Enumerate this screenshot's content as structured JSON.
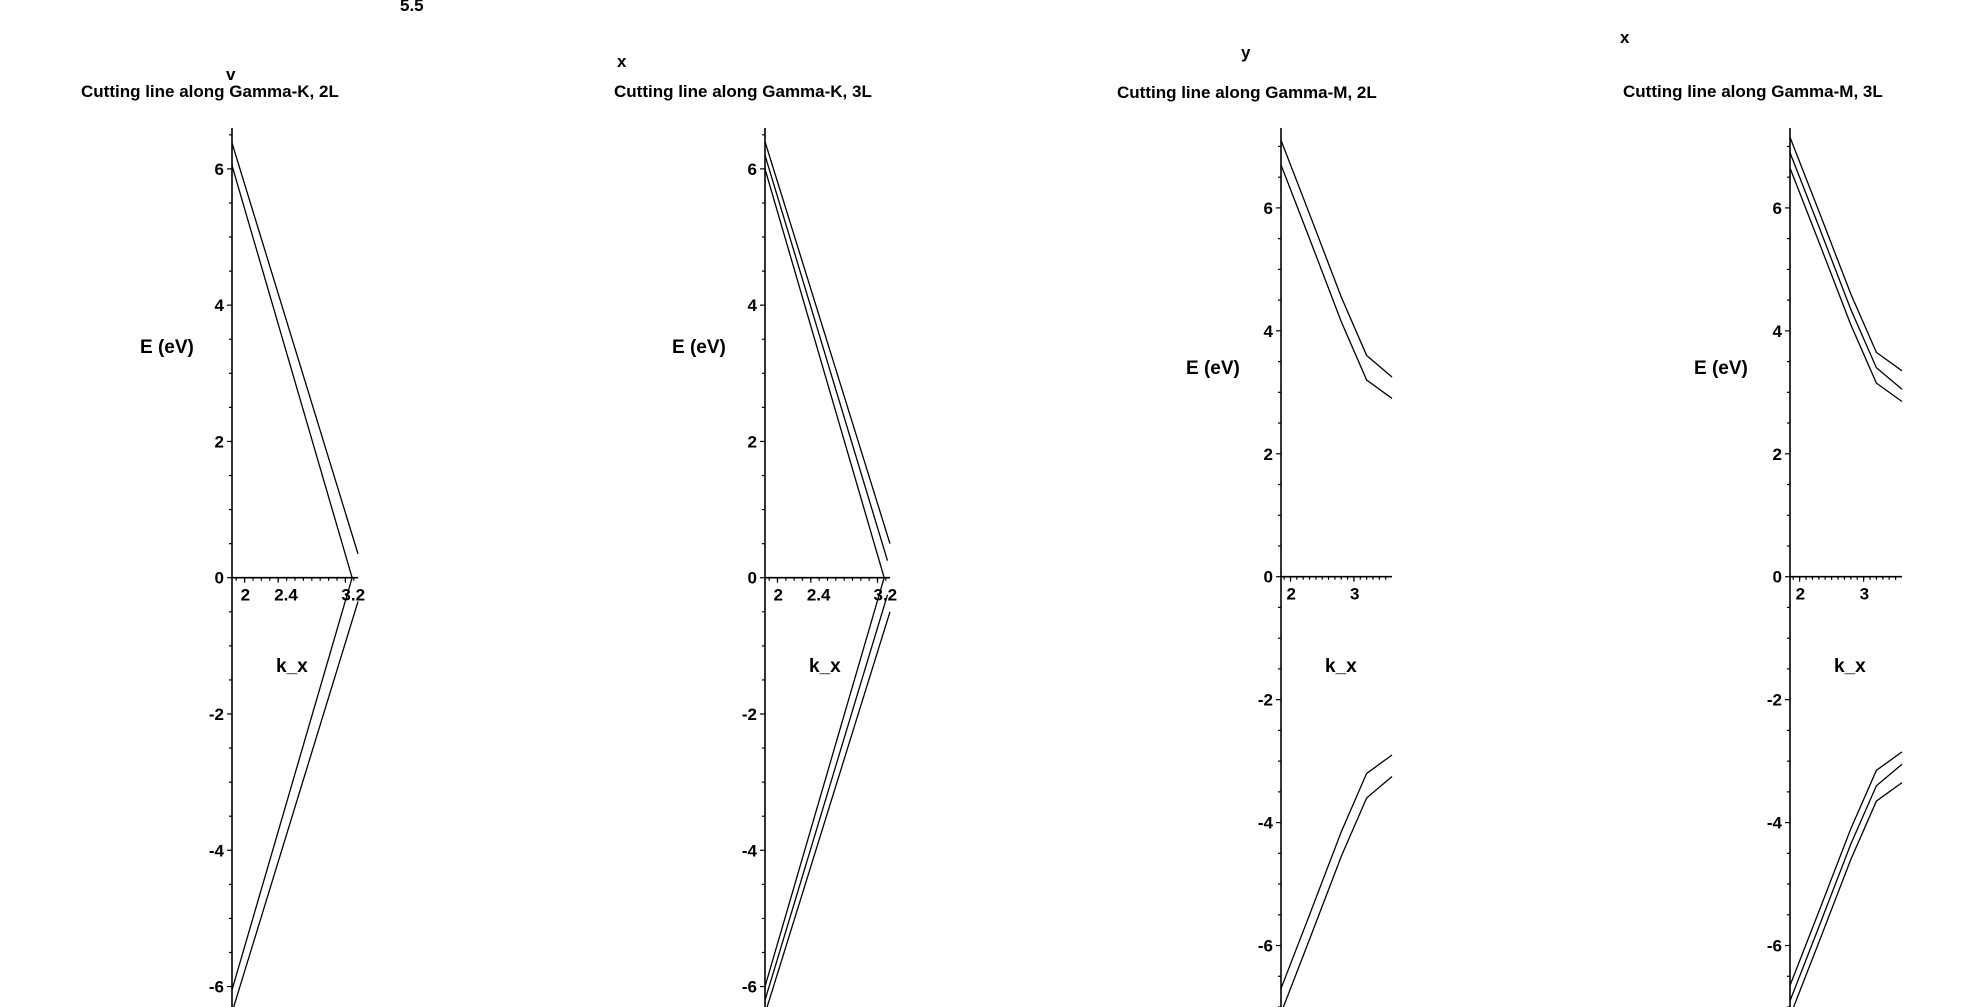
{
  "chart_data": [
    {
      "type": "line",
      "title": "Cutting line along Gamma-K, 2L",
      "xlabel": "k_x",
      "ylabel": "E (eV)",
      "xlim": [
        1.85,
        3.35
      ],
      "ylim": [
        -6.3,
        6.6
      ],
      "x_ticks": [
        {
          "value": 2,
          "label": "2"
        },
        {
          "value": 2.4,
          "label": "2.4"
        },
        {
          "value": 3.2,
          "label": "3.2"
        }
      ],
      "y_ticks": [
        {
          "value": 6,
          "label": "6"
        },
        {
          "value": 4,
          "label": "4"
        },
        {
          "value": 2,
          "label": "2"
        },
        {
          "value": 0,
          "label": "0"
        },
        {
          "value": -2,
          "label": "-2"
        },
        {
          "value": -4,
          "label": "-4"
        },
        {
          "value": -6,
          "label": "-6"
        }
      ],
      "grid": false,
      "series": [
        {
          "x": [
            1.85,
            3.35
          ],
          "y": [
            6.38,
            0.35
          ]
        },
        {
          "x": [
            1.85,
            3.28
          ],
          "y": [
            6.05,
            0.0
          ]
        },
        {
          "x": [
            1.85,
            3.28
          ],
          "y": [
            -6.05,
            0.0
          ]
        },
        {
          "x": [
            1.85,
            3.35
          ],
          "y": [
            -6.38,
            -0.35
          ]
        }
      ]
    },
    {
      "type": "line",
      "title": "Cutting line along Gamma-K, 3L",
      "xlabel": "k_x",
      "ylabel": "E (eV)",
      "xlim": [
        1.85,
        3.35
      ],
      "ylim": [
        -6.3,
        6.6
      ],
      "x_ticks": [
        {
          "value": 2,
          "label": "2"
        },
        {
          "value": 2.4,
          "label": "2.4"
        },
        {
          "value": 3.2,
          "label": "3.2"
        }
      ],
      "y_ticks": [
        {
          "value": 6,
          "label": "6"
        },
        {
          "value": 4,
          "label": "4"
        },
        {
          "value": 2,
          "label": "2"
        },
        {
          "value": 0,
          "label": "0"
        },
        {
          "value": -2,
          "label": "-2"
        },
        {
          "value": -4,
          "label": "-4"
        },
        {
          "value": -6,
          "label": "-6"
        }
      ],
      "grid": false,
      "series": [
        {
          "x": [
            1.85,
            3.35
          ],
          "y": [
            6.4,
            0.5
          ]
        },
        {
          "x": [
            1.85,
            3.32
          ],
          "y": [
            6.2,
            0.25
          ]
        },
        {
          "x": [
            1.85,
            3.28
          ],
          "y": [
            6.0,
            0.0
          ]
        },
        {
          "x": [
            1.85,
            3.28
          ],
          "y": [
            -6.0,
            0.0
          ]
        },
        {
          "x": [
            1.85,
            3.32
          ],
          "y": [
            -6.2,
            -0.25
          ]
        },
        {
          "x": [
            1.85,
            3.35
          ],
          "y": [
            -6.4,
            -0.5
          ]
        }
      ]
    },
    {
      "type": "line",
      "title": "Cutting line along Gamma-M, 2L",
      "xlabel": "k_x",
      "ylabel": "E (eV)",
      "xlim": [
        1.85,
        3.6
      ],
      "ylim": [
        -7.0,
        7.3
      ],
      "x_ticks": [
        {
          "value": 2,
          "label": "2"
        },
        {
          "value": 3,
          "label": "3"
        }
      ],
      "y_ticks": [
        {
          "value": 6,
          "label": "6"
        },
        {
          "value": 4,
          "label": "4"
        },
        {
          "value": 2,
          "label": "2"
        },
        {
          "value": 0,
          "label": "0"
        },
        {
          "value": -2,
          "label": "-2"
        },
        {
          "value": -4,
          "label": "-4"
        },
        {
          "value": -6,
          "label": "-6"
        }
      ],
      "grid": false,
      "series": [
        {
          "x": [
            1.85,
            2.3,
            2.8,
            3.2,
            3.6
          ],
          "y": [
            7.1,
            5.9,
            4.55,
            3.6,
            3.25
          ]
        },
        {
          "x": [
            1.85,
            2.3,
            2.8,
            3.2,
            3.6
          ],
          "y": [
            6.7,
            5.5,
            4.15,
            3.2,
            2.9
          ]
        },
        {
          "x": [
            1.85,
            2.3,
            2.8,
            3.2,
            3.6
          ],
          "y": [
            -6.7,
            -5.5,
            -4.15,
            -3.2,
            -2.9
          ]
        },
        {
          "x": [
            1.85,
            2.3,
            2.8,
            3.2,
            3.6
          ],
          "y": [
            -7.1,
            -5.9,
            -4.55,
            -3.6,
            -3.25
          ]
        }
      ]
    },
    {
      "type": "line",
      "title": "Cutting line along Gamma-M, 3L",
      "xlabel": "k_x",
      "ylabel": "E (eV)",
      "xlim": [
        1.85,
        3.6
      ],
      "ylim": [
        -7.0,
        7.3
      ],
      "x_ticks": [
        {
          "value": 2,
          "label": "2"
        },
        {
          "value": 3,
          "label": "3"
        }
      ],
      "y_ticks": [
        {
          "value": 6,
          "label": "6"
        },
        {
          "value": 4,
          "label": "4"
        },
        {
          "value": 2,
          "label": "2"
        },
        {
          "value": 0,
          "label": "0"
        },
        {
          "value": -2,
          "label": "-2"
        },
        {
          "value": -4,
          "label": "-4"
        },
        {
          "value": -6,
          "label": "-6"
        }
      ],
      "grid": false,
      "series": [
        {
          "x": [
            1.85,
            2.3,
            2.8,
            3.2,
            3.6
          ],
          "y": [
            7.15,
            5.95,
            4.6,
            3.65,
            3.35
          ]
        },
        {
          "x": [
            1.85,
            2.3,
            2.8,
            3.2,
            3.6
          ],
          "y": [
            6.9,
            5.7,
            4.35,
            3.4,
            3.05
          ]
        },
        {
          "x": [
            1.85,
            2.3,
            2.8,
            3.2,
            3.6
          ],
          "y": [
            6.65,
            5.45,
            4.1,
            3.15,
            2.85
          ]
        },
        {
          "x": [
            1.85,
            2.3,
            2.8,
            3.2,
            3.6
          ],
          "y": [
            -6.65,
            -5.45,
            -4.1,
            -3.15,
            -2.85
          ]
        },
        {
          "x": [
            1.85,
            2.3,
            2.8,
            3.2,
            3.6
          ],
          "y": [
            -6.9,
            -5.7,
            -4.35,
            -3.4,
            -3.05
          ]
        },
        {
          "x": [
            1.85,
            2.3,
            2.8,
            3.2,
            3.6
          ],
          "y": [
            -7.15,
            -5.95,
            -4.6,
            -3.65,
            -3.35
          ]
        }
      ]
    }
  ],
  "stray_labels": [
    "5.5",
    "v",
    "x",
    "y",
    "x"
  ]
}
